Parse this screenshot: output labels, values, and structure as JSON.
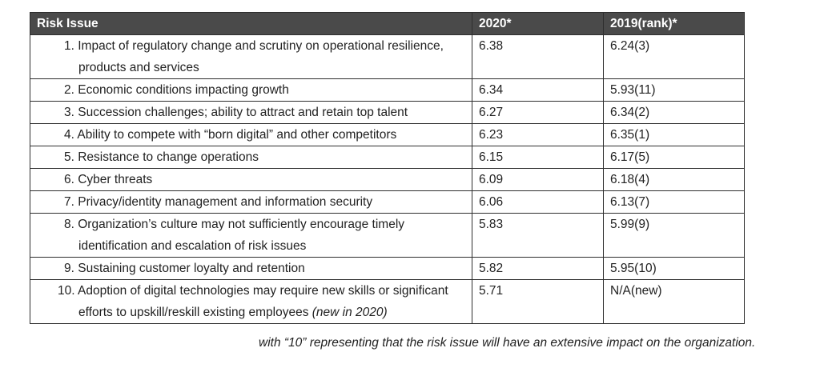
{
  "table": {
    "headers": [
      "Risk Issue",
      "2020*",
      "2019(rank)*"
    ],
    "rows": [
      {
        "issue": "1. Impact of regulatory change and scrutiny on operational resilience, products and services",
        "note": "",
        "y2020": "6.38",
        "y2019": "6.24(3)"
      },
      {
        "issue": "2. Economic conditions impacting growth",
        "note": "",
        "y2020": "6.34",
        "y2019": "5.93(11)"
      },
      {
        "issue": "3. Succession challenges; ability to attract and retain top talent",
        "note": "",
        "y2020": "6.27",
        "y2019": "6.34(2)"
      },
      {
        "issue": "4. Ability to compete with “born digital” and other competitors",
        "note": "",
        "y2020": "6.23",
        "y2019": "6.35(1)"
      },
      {
        "issue": "5. Resistance to change operations",
        "note": "",
        "y2020": "6.15",
        "y2019": "6.17(5)"
      },
      {
        "issue": "6. Cyber threats",
        "note": "",
        "y2020": "6.09",
        "y2019": "6.18(4)"
      },
      {
        "issue": "7. Privacy/identity management and information security",
        "note": "",
        "y2020": "6.06",
        "y2019": "6.13(7)"
      },
      {
        "issue": "8. Organization’s culture may not sufficiently encourage timely identification and escalation of risk issues",
        "note": "",
        "y2020": "5.83",
        "y2019": "5.99(9)"
      },
      {
        "issue": "9. Sustaining customer loyalty and retention",
        "note": "",
        "y2020": "5.82",
        "y2019": "5.95(10)"
      },
      {
        "issue": "10. Adoption of digital technologies may require new skills or significant efforts to upskill/reskill existing employees",
        "note": "(new in 2020)",
        "y2020": "5.71",
        "y2019": "N/A(new)"
      }
    ]
  },
  "footnote": "with “10” representing that the risk issue will have an extensive impact on the organization."
}
